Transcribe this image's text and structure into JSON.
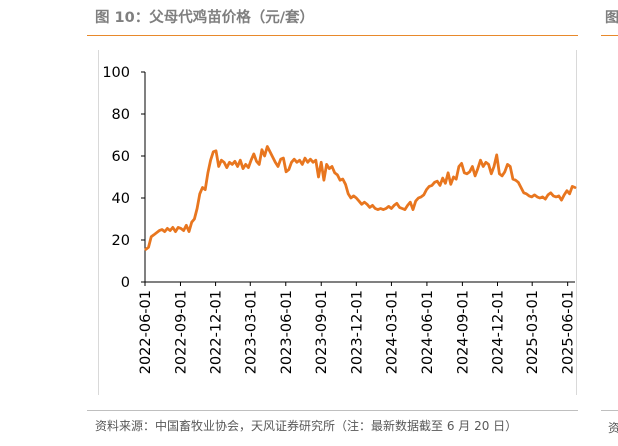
{
  "title": "图 10：父母代鸡苗价格（元/套）",
  "source": "资料来源：中国畜牧业协会，天风证券研究所（注：最新数据截至 6 月 20 日）",
  "next_figure": {
    "title_glyph": "图",
    "source_glyph": "资"
  },
  "colors": {
    "line": "#e8761f",
    "accent_rule": "#e8892b",
    "axis": "#000000",
    "text": "#7f7f7f"
  },
  "chart_data": {
    "type": "line",
    "title": "父母代鸡苗价格（元/套）",
    "xlabel": "",
    "ylabel": "元/套",
    "ylim": [
      0,
      100
    ],
    "yticks": [
      0,
      20,
      40,
      60,
      80,
      100
    ],
    "ytick_labels": [
      "0",
      "20",
      "40",
      "60",
      "80",
      "100"
    ],
    "xlim": [
      "2022-06-01",
      "2025-06-20"
    ],
    "xticks": [
      "2022-06-01",
      "2022-09-01",
      "2022-12-01",
      "2023-03-01",
      "2023-06-01",
      "2023-09-01",
      "2023-12-01",
      "2024-03-01",
      "2024-06-01",
      "2024-09-01",
      "2024-12-01",
      "2025-03-01",
      "2025-06-01"
    ],
    "xtick_labels": [
      "2022-06-01",
      "2022-09-01",
      "2022-12-01",
      "2023-03-01",
      "2023-06-01",
      "2023-09-01",
      "2023-12-01",
      "2024-03-01",
      "2024-06-01",
      "2024-09-01",
      "2024-12-01",
      "2025-03-01",
      "2025-06-01"
    ],
    "legend": "none",
    "grid": false,
    "series": [
      {
        "name": "父母代鸡苗价格",
        "points": [
          [
            "2022-06-03",
            15.5
          ],
          [
            "2022-06-10",
            16.5
          ],
          [
            "2022-06-17",
            21.5
          ],
          [
            "2022-06-24",
            22.5
          ],
          [
            "2022-07-01",
            23.5
          ],
          [
            "2022-07-08",
            24.5
          ],
          [
            "2022-07-15",
            25
          ],
          [
            "2022-07-22",
            24
          ],
          [
            "2022-07-29",
            25.5
          ],
          [
            "2022-08-05",
            24.5
          ],
          [
            "2022-08-12",
            26
          ],
          [
            "2022-08-19",
            24
          ],
          [
            "2022-08-26",
            26
          ],
          [
            "2022-09-02",
            25.5
          ],
          [
            "2022-09-09",
            24.5
          ],
          [
            "2022-09-16",
            27
          ],
          [
            "2022-09-23",
            24
          ],
          [
            "2022-09-30",
            28.5
          ],
          [
            "2022-10-07",
            30
          ],
          [
            "2022-10-14",
            35
          ],
          [
            "2022-10-21",
            42
          ],
          [
            "2022-10-28",
            45
          ],
          [
            "2022-11-04",
            44
          ],
          [
            "2022-11-11",
            52
          ],
          [
            "2022-11-18",
            58
          ],
          [
            "2022-11-25",
            62
          ],
          [
            "2022-12-02",
            62.5
          ],
          [
            "2022-12-09",
            55
          ],
          [
            "2022-12-16",
            58
          ],
          [
            "2022-12-23",
            57
          ],
          [
            "2022-12-30",
            54.5
          ],
          [
            "2023-01-06",
            57
          ],
          [
            "2023-01-13",
            56
          ],
          [
            "2023-01-20",
            57.5
          ],
          [
            "2023-01-27",
            55
          ],
          [
            "2023-02-03",
            58
          ],
          [
            "2023-02-10",
            54
          ],
          [
            "2023-02-17",
            56
          ],
          [
            "2023-02-24",
            54.5
          ],
          [
            "2023-03-03",
            58
          ],
          [
            "2023-03-10",
            61
          ],
          [
            "2023-03-17",
            57.5
          ],
          [
            "2023-03-24",
            56
          ],
          [
            "2023-03-31",
            63
          ],
          [
            "2023-04-07",
            60
          ],
          [
            "2023-04-14",
            64.5
          ],
          [
            "2023-04-21",
            62
          ],
          [
            "2023-04-28",
            59.5
          ],
          [
            "2023-05-05",
            57
          ],
          [
            "2023-05-12",
            55
          ],
          [
            "2023-05-19",
            58.5
          ],
          [
            "2023-05-26",
            59
          ],
          [
            "2023-06-02",
            52.5
          ],
          [
            "2023-06-09",
            53.5
          ],
          [
            "2023-06-16",
            57
          ],
          [
            "2023-06-23",
            58.5
          ],
          [
            "2023-06-30",
            57
          ],
          [
            "2023-07-07",
            58
          ],
          [
            "2023-07-14",
            56
          ],
          [
            "2023-07-21",
            59
          ],
          [
            "2023-07-28",
            57
          ],
          [
            "2023-08-04",
            58.5
          ],
          [
            "2023-08-11",
            57
          ],
          [
            "2023-08-18",
            58
          ],
          [
            "2023-08-25",
            50
          ],
          [
            "2023-09-01",
            57
          ],
          [
            "2023-09-08",
            48.5
          ],
          [
            "2023-09-15",
            56
          ],
          [
            "2023-09-22",
            54
          ],
          [
            "2023-09-29",
            55
          ],
          [
            "2023-10-06",
            52
          ],
          [
            "2023-10-13",
            51
          ],
          [
            "2023-10-20",
            48.5
          ],
          [
            "2023-10-27",
            49
          ],
          [
            "2023-11-03",
            46.5
          ],
          [
            "2023-11-10",
            42
          ],
          [
            "2023-11-17",
            40
          ],
          [
            "2023-11-24",
            41
          ],
          [
            "2023-12-01",
            40
          ],
          [
            "2023-12-08",
            38.5
          ],
          [
            "2023-12-15",
            37
          ],
          [
            "2023-12-22",
            38
          ],
          [
            "2023-12-29",
            37
          ],
          [
            "2024-01-05",
            35.5
          ],
          [
            "2024-01-12",
            36.5
          ],
          [
            "2024-01-19",
            35
          ],
          [
            "2024-01-26",
            34.5
          ],
          [
            "2024-02-02",
            35
          ],
          [
            "2024-02-09",
            34.5
          ],
          [
            "2024-02-16",
            35
          ],
          [
            "2024-02-23",
            36
          ],
          [
            "2024-03-01",
            35
          ],
          [
            "2024-03-08",
            36.5
          ],
          [
            "2024-03-15",
            37.5
          ],
          [
            "2024-03-22",
            35.5
          ],
          [
            "2024-03-29",
            35
          ],
          [
            "2024-04-05",
            34.5
          ],
          [
            "2024-04-12",
            36.5
          ],
          [
            "2024-04-19",
            38
          ],
          [
            "2024-04-26",
            34.5
          ],
          [
            "2024-05-03",
            38.5
          ],
          [
            "2024-05-10",
            40
          ],
          [
            "2024-05-17",
            40.5
          ],
          [
            "2024-05-24",
            41.5
          ],
          [
            "2024-05-31",
            44
          ],
          [
            "2024-06-07",
            45.5
          ],
          [
            "2024-06-14",
            46
          ],
          [
            "2024-06-21",
            47.5
          ],
          [
            "2024-06-28",
            48
          ],
          [
            "2024-07-05",
            46
          ],
          [
            "2024-07-12",
            49.5
          ],
          [
            "2024-07-19",
            47
          ],
          [
            "2024-07-26",
            52
          ],
          [
            "2024-08-02",
            46.5
          ],
          [
            "2024-08-09",
            50
          ],
          [
            "2024-08-16",
            49
          ],
          [
            "2024-08-23",
            55
          ],
          [
            "2024-08-30",
            56.5
          ],
          [
            "2024-09-06",
            52
          ],
          [
            "2024-09-13",
            51.5
          ],
          [
            "2024-09-20",
            52.5
          ],
          [
            "2024-09-27",
            55
          ],
          [
            "2024-10-04",
            50.5
          ],
          [
            "2024-10-11",
            54
          ],
          [
            "2024-10-18",
            58
          ],
          [
            "2024-10-25",
            55
          ],
          [
            "2024-11-01",
            57
          ],
          [
            "2024-11-08",
            56
          ],
          [
            "2024-11-15",
            51.5
          ],
          [
            "2024-11-22",
            55
          ],
          [
            "2024-11-29",
            60.5
          ],
          [
            "2024-12-06",
            51.5
          ],
          [
            "2024-12-13",
            50.5
          ],
          [
            "2024-12-20",
            52.5
          ],
          [
            "2024-12-27",
            56
          ],
          [
            "2025-01-03",
            55
          ],
          [
            "2025-01-10",
            49
          ],
          [
            "2025-01-17",
            48.5
          ],
          [
            "2025-01-24",
            47.5
          ],
          [
            "2025-01-31",
            45
          ],
          [
            "2025-02-07",
            42.5
          ],
          [
            "2025-02-14",
            42
          ],
          [
            "2025-02-21",
            41
          ],
          [
            "2025-02-28",
            40.5
          ],
          [
            "2025-03-07",
            41.5
          ],
          [
            "2025-03-14",
            40.5
          ],
          [
            "2025-03-21",
            40
          ],
          [
            "2025-03-28",
            40.5
          ],
          [
            "2025-04-04",
            39.5
          ],
          [
            "2025-04-11",
            41.5
          ],
          [
            "2025-04-18",
            42.5
          ],
          [
            "2025-04-25",
            41
          ],
          [
            "2025-05-02",
            40.5
          ],
          [
            "2025-05-09",
            41
          ],
          [
            "2025-05-16",
            39
          ],
          [
            "2025-05-23",
            41.5
          ],
          [
            "2025-05-30",
            43.5
          ],
          [
            "2025-06-06",
            42
          ],
          [
            "2025-06-13",
            45.5
          ],
          [
            "2025-06-20",
            45
          ]
        ]
      }
    ]
  }
}
